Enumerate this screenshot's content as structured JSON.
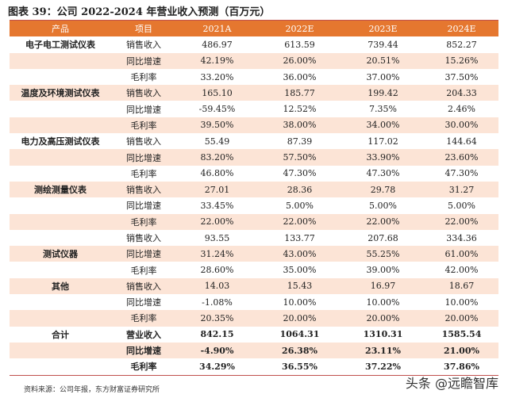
{
  "title": "图表 39：公司 2022-2024 年营业收入预测（百万元）",
  "table": {
    "header": [
      "产品",
      "项目",
      "2021A",
      "2022E",
      "2023E",
      "2024E"
    ],
    "groups": [
      {
        "product": "电子电工测试仪表",
        "rows": [
          [
            "销售收入",
            "486.97",
            "613.59",
            "739.44",
            "852.27"
          ],
          [
            "同比增速",
            "42.19%",
            "26.00%",
            "20.51%",
            "15.26%"
          ],
          [
            "毛利率",
            "33.20%",
            "36.00%",
            "37.00%",
            "37.50%"
          ]
        ]
      },
      {
        "product": "温度及环境测试仪表",
        "rows": [
          [
            "销售收入",
            "165.10",
            "185.77",
            "199.42",
            "204.33"
          ],
          [
            "同比增速",
            "-59.45%",
            "12.52%",
            "7.35%",
            "2.46%"
          ],
          [
            "毛利率",
            "39.50%",
            "38.00%",
            "34.00%",
            "30.00%"
          ]
        ]
      },
      {
        "product": "电力及高压测试仪表",
        "rows": [
          [
            "销售收入",
            "55.49",
            "87.39",
            "117.02",
            "144.64"
          ],
          [
            "同比增速",
            "83.20%",
            "57.50%",
            "33.90%",
            "23.60%"
          ],
          [
            "毛利率",
            "46.80%",
            "47.30%",
            "47.30%",
            "47.30%"
          ]
        ]
      },
      {
        "product": "测绘测量仪表",
        "rows": [
          [
            "销售收入",
            "27.01",
            "28.36",
            "29.78",
            "31.27"
          ],
          [
            "同比增速",
            "33.45%",
            "5.00%",
            "5.00%",
            "5.00%"
          ],
          [
            "毛利率",
            "22.00%",
            "22.00%",
            "22.00%",
            "22.00%"
          ]
        ]
      },
      {
        "product": "测试仪器",
        "rows": [
          [
            "销售收入",
            "93.55",
            "133.77",
            "207.68",
            "334.36"
          ],
          [
            "同比增速",
            "31.24%",
            "43.00%",
            "55.25%",
            "61.00%"
          ],
          [
            "毛利率",
            "28.60%",
            "35.00%",
            "39.00%",
            "42.00%"
          ]
        ]
      },
      {
        "product": "其他",
        "rows": [
          [
            "销售收入",
            "14.03",
            "15.43",
            "16.97",
            "18.67"
          ],
          [
            "同比增速",
            "-1.08%",
            "10.00%",
            "10.00%",
            "10.00%"
          ],
          [
            "毛利率",
            "20.35%",
            "20.00%",
            "20.00%",
            "20.00%"
          ]
        ]
      },
      {
        "product": "合计",
        "rows": [
          [
            "营业收入",
            "842.15",
            "1064.31",
            "1310.31",
            "1585.54"
          ],
          [
            "同比增速",
            "-4.90%",
            "26.38%",
            "23.11%",
            "21.00%"
          ],
          [
            "毛利率",
            "34.29%",
            "36.55%",
            "37.22%",
            "37.86%"
          ]
        ]
      }
    ]
  },
  "source": "资料来源：公司年报，东方财富证券研究所",
  "watermark": "头条 @远瞻智库"
}
